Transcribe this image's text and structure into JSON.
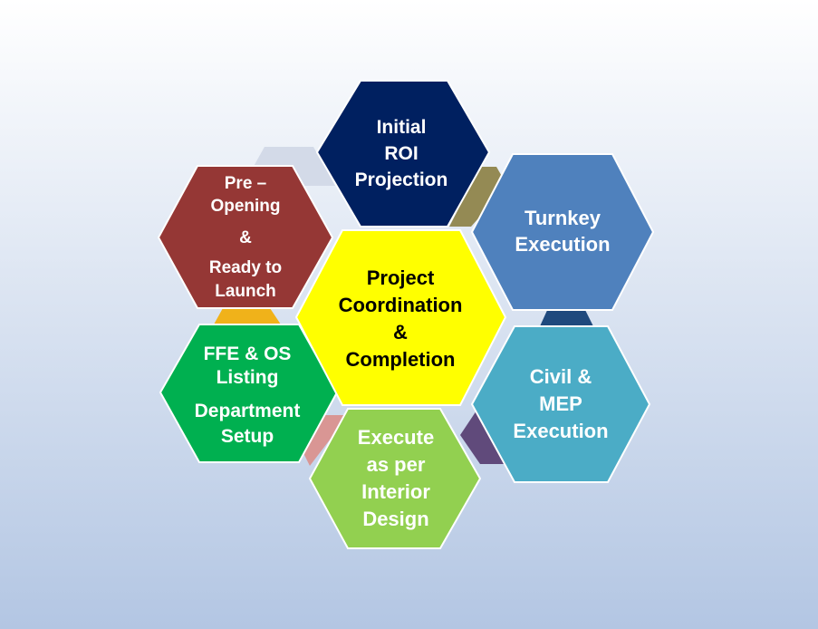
{
  "colors": {
    "background_top": "#ffffff",
    "background_bottom": "#b3c6e3",
    "hex_outline": "#ffffff",
    "text_light": "#ffffff",
    "text_dark": "#000000"
  },
  "hexagons": {
    "center": {
      "lines": [
        "Project",
        "Coordination",
        "&",
        "Completion"
      ],
      "color": "#ffff00"
    },
    "initial_roi": {
      "lines": [
        "Initial",
        "ROI",
        "Projection"
      ],
      "color": "#002060"
    },
    "turnkey": {
      "lines": [
        "Turnkey",
        "Execution"
      ],
      "color": "#4f81bd"
    },
    "civil_mep": {
      "lines": [
        "Civil &",
        "MEP",
        "Execution"
      ],
      "color": "#4bacc6"
    },
    "interior": {
      "lines": [
        "Execute",
        "as per",
        "Interior",
        "Design"
      ],
      "color": "#92d050"
    },
    "ffe_os": {
      "lines": [
        "FFE & OS",
        "Listing",
        "Department",
        "Setup"
      ],
      "color": "#00b050"
    },
    "pre_opening": {
      "lines": [
        "Pre –",
        "Opening",
        "&",
        "Ready to",
        "Launch"
      ],
      "color": "#953735"
    }
  },
  "connectors": {
    "ghost_top": "#d3dae8",
    "olive": "#948a54",
    "navy": "#1f497d",
    "purple": "#604a7b",
    "pink": "#d99694",
    "orange": "#f0b21a"
  }
}
